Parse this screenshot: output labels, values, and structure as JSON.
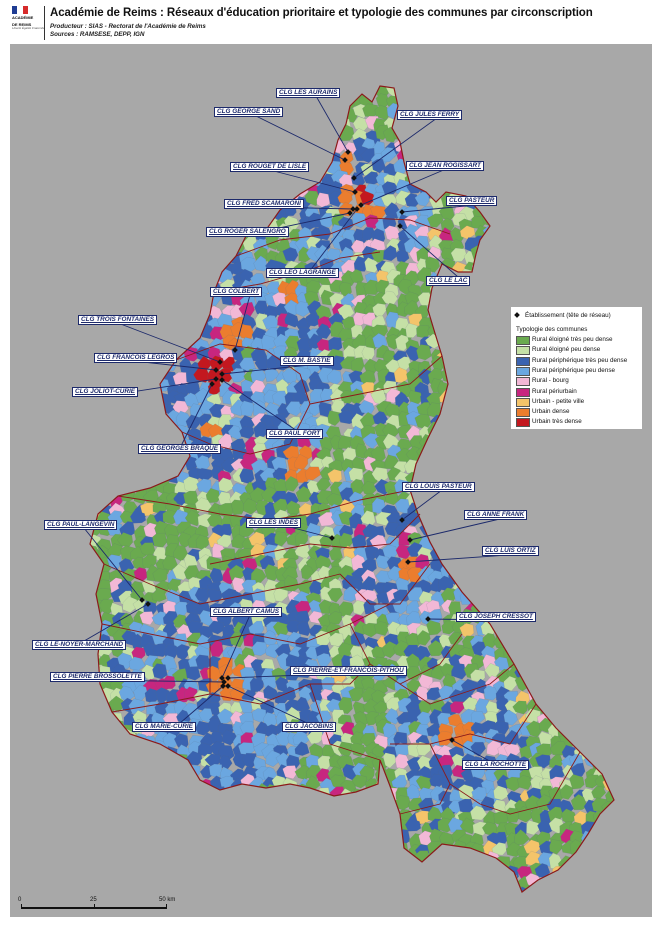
{
  "header": {
    "title": "Académie de Reims : Réseaux d'éducation prioritaire et typologie des communes par circonscription",
    "producer": "Producteur : SIAS - Rectorat de l'Académie de Reims",
    "sources": "Sources : RAMSESE, DEPP, IGN",
    "logo_line1": "ACADÉMIE",
    "logo_line2": "DE REIMS",
    "logo_sub": "Liberté Égalité Fraternité"
  },
  "colors": {
    "rural_eloigne_tres_peu_dense": "#6aaa4f",
    "rural_eloigne_peu_dense": "#c5e0a6",
    "rural_periph_tres_peu_dense": "#3a63b0",
    "rural_periph_peu_dense": "#6ba7e0",
    "rural_bourg": "#f2b8d6",
    "rural_periurbain": "#c7267f",
    "urbain_petite_ville": "#f4c46a",
    "urbain_dense": "#eb7d2e",
    "urbain_tres_dense": "#c3181f",
    "outside": "#a8a8a8",
    "boundary": "#8b1a1a",
    "label_text": "#1d2a6b"
  },
  "legend": {
    "establishment": "Établissement (tête de réseau)",
    "typology_title": "Typologie des communes",
    "items": [
      {
        "label": "Rural éloigné très peu dense",
        "color": "#6aaa4f"
      },
      {
        "label": "Rural éloigné peu dense",
        "color": "#c5e0a6"
      },
      {
        "label": "Rural périphérique très peu dense",
        "color": "#3a63b0"
      },
      {
        "label": "Rural périphérique peu dense",
        "color": "#6ba7e0"
      },
      {
        "label": "Rural - bourg",
        "color": "#f2b8d6"
      },
      {
        "label": "Rural périurbain",
        "color": "#c7267f"
      },
      {
        "label": "Urbain - petite ville",
        "color": "#f4c46a"
      },
      {
        "label": "Urbain dense",
        "color": "#eb7d2e"
      },
      {
        "label": "Urbain très dense",
        "color": "#c3181f"
      }
    ]
  },
  "schools": [
    "CLG LES AURAINS",
    "CLG GEORGE SAND",
    "CLG JULES FERRY",
    "CLG ROUGET DE LISLE",
    "CLG JEAN ROGISSART",
    "CLG FRED SCAMARONI",
    "CLG PASTEUR",
    "CLG ROGER SALENGRO",
    "CLG LEO LAGRANGE",
    "CLG LE LAC",
    "CLG COLBERT",
    "CLG  TROIS FONTAINES",
    "CLG  FRANCOIS LEGROS",
    "CLG M. BASTIE",
    "CLG JOLIOT-CURIE",
    "CLG PAUL FORT",
    "CLG GEORGES BRAQUE",
    "CLG LOUIS PASTEUR",
    "CLG ANNE FRANK",
    "CLG PAUL-LANGEVIN",
    "CLG LES INDES",
    "CLG LUIS ORTIZ",
    "CLG ALBERT CAMUS",
    "CLG JOSEPH CRESSOT",
    "CLG LE-NOYER-MARCHAND",
    "CLG PIERRE-ET-FRANCOIS-PITHOU",
    "CLG PIERRE BROSSOLETTE",
    "CLG MARIE-CURIE",
    "CLG JACOBINS",
    "CLG LA ROCHOTTE"
  ],
  "scale": {
    "ticks": [
      "0",
      "25",
      "50 km"
    ]
  }
}
